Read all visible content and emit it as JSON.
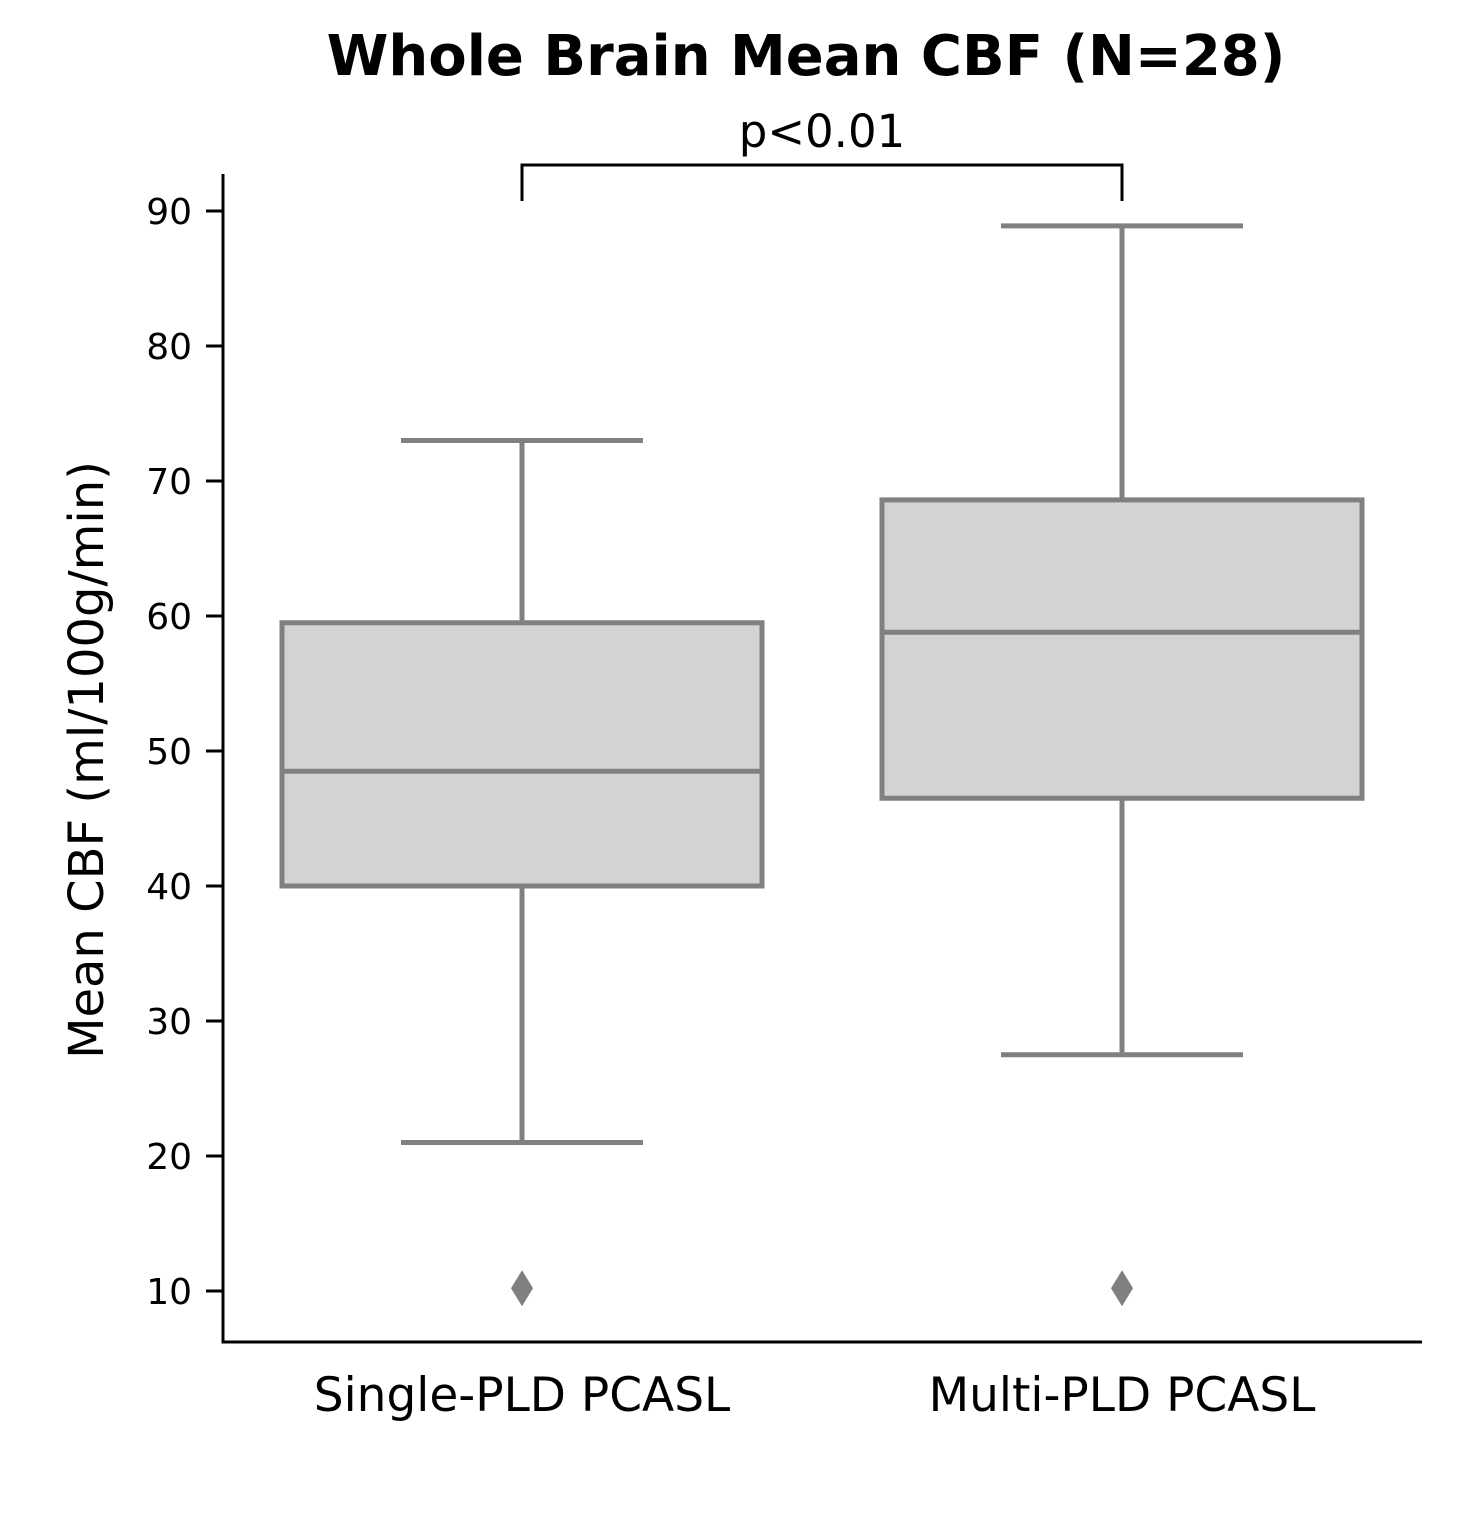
{
  "chart_data": {
    "type": "box",
    "title": "Whole Brain Mean CBF (N=28)",
    "xlabel": "",
    "ylabel": "Mean CBF (ml/100g/min)",
    "categories": [
      "Single-PLD PCASL",
      "Multi-PLD PCASL"
    ],
    "boxes": [
      {
        "category": "Single-PLD PCASL",
        "whisker_low": 21.0,
        "q1": 40.0,
        "median": 48.5,
        "q3": 59.5,
        "whisker_high": 73.0,
        "outliers": [
          10.2
        ]
      },
      {
        "category": "Multi-PLD PCASL",
        "whisker_low": 27.5,
        "q1": 46.5,
        "median": 58.8,
        "q3": 68.6,
        "whisker_high": 88.9,
        "outliers": [
          10.2
        ]
      }
    ],
    "yticks": [
      10,
      20,
      30,
      40,
      50,
      60,
      70,
      80,
      90
    ],
    "ylim": [
      6.2,
      92.8
    ],
    "grid": false,
    "significance": {
      "from": 0,
      "to": 1,
      "label": "p<0.01"
    },
    "colors": {
      "box_fill": "#d3d3d3",
      "box_edge": "#808080",
      "axis": "#000000"
    }
  }
}
